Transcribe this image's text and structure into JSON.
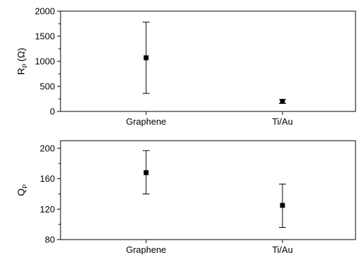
{
  "chart_data": [
    {
      "type": "scatter",
      "error_bars": true,
      "categories": [
        "Graphene",
        "Ti/Au"
      ],
      "series": [
        {
          "values": [
            1070,
            200
          ],
          "error_low": [
            360,
            160
          ],
          "error_high": [
            1780,
            240
          ]
        }
      ],
      "ylabel": {
        "main": "R",
        "sub": "P",
        "unit": "(Ω)"
      },
      "ylim": [
        0,
        2000
      ],
      "yticks": [
        0,
        500,
        1000,
        1500,
        2000
      ],
      "ytick_labels": [
        "0",
        "500",
        "1000",
        "1500",
        "2000"
      ],
      "grid": false,
      "marker": "square",
      "color": "#000000"
    },
    {
      "type": "scatter",
      "error_bars": true,
      "categories": [
        "Graphene",
        "Ti/Au"
      ],
      "series": [
        {
          "values": [
            168,
            125
          ],
          "error_low": [
            140,
            96
          ],
          "error_high": [
            197,
            153
          ]
        }
      ],
      "ylabel": {
        "main": "Q",
        "sub": "P",
        "unit": ""
      },
      "ylim": [
        80,
        210
      ],
      "yticks": [
        80,
        120,
        160,
        200
      ],
      "ytick_labels": [
        "80",
        "120",
        "160",
        "200"
      ],
      "grid": false,
      "marker": "square",
      "color": "#000000"
    }
  ]
}
